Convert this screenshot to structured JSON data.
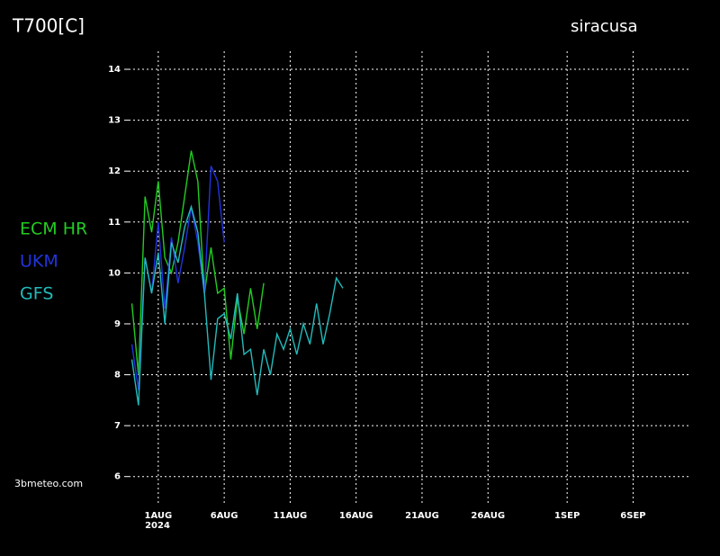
{
  "chart_data": {
    "type": "line",
    "title": "T700[C]",
    "subtitle": "siracusa",
    "credit": "3bmeteo.com",
    "year": "2024",
    "xlim": [
      -0.9,
      41.2
    ],
    "ylim": [
      5.5,
      14.4
    ],
    "yticks": [
      6,
      7,
      8,
      9,
      10,
      11,
      12,
      13,
      14
    ],
    "xticks": [
      {
        "value": 1,
        "label": "1AUG"
      },
      {
        "value": 6,
        "label": "6AUG"
      },
      {
        "value": 11,
        "label": "11AUG"
      },
      {
        "value": 16,
        "label": "16AUG"
      },
      {
        "value": 21,
        "label": "21AUG"
      },
      {
        "value": 26,
        "label": "26AUG"
      },
      {
        "value": 32,
        "label": "1SEP"
      },
      {
        "value": 37,
        "label": "6SEP"
      }
    ],
    "grid": true,
    "series": [
      {
        "name": "ECM HR",
        "color": "#22cc22",
        "x": [
          -1,
          -0.5,
          0,
          0.5,
          1,
          1.5,
          2,
          2.5,
          3,
          3.5,
          4,
          4.5,
          5,
          5.5,
          6,
          6.5,
          7,
          7.5,
          8,
          8.5,
          9
        ],
        "values": [
          9.4,
          8.0,
          11.5,
          10.8,
          11.8,
          10.3,
          10.0,
          10.6,
          11.5,
          12.4,
          11.8,
          9.6,
          10.5,
          9.6,
          9.7,
          8.3,
          9.5,
          8.8,
          9.7,
          8.9,
          9.8
        ]
      },
      {
        "name": "UKM",
        "color": "#2233dd",
        "x": [
          -1,
          -0.5,
          0,
          0.5,
          1,
          1.5,
          2,
          2.5,
          3,
          3.5,
          4,
          4.5,
          5,
          5.5,
          6
        ],
        "values": [
          8.6,
          7.7,
          10.3,
          9.6,
          11.0,
          9.3,
          10.7,
          9.8,
          10.5,
          11.3,
          10.6,
          9.6,
          12.1,
          11.8,
          10.6
        ]
      },
      {
        "name": "GFS",
        "color": "#22bbbb",
        "x": [
          -1,
          -0.5,
          0,
          0.5,
          1,
          1.5,
          2,
          2.5,
          3,
          3.5,
          4,
          4.5,
          5,
          5.5,
          6,
          6.5,
          7,
          7.5,
          8,
          8.5,
          9,
          9.5,
          10,
          10.5,
          11,
          11.5,
          12,
          12.5,
          13,
          13.5,
          14,
          14.5,
          15
        ],
        "values": [
          8.3,
          7.4,
          10.3,
          9.6,
          10.4,
          9.0,
          10.6,
          10.2,
          10.9,
          11.3,
          10.8,
          9.6,
          7.9,
          9.1,
          9.2,
          8.7,
          9.6,
          8.4,
          8.5,
          7.6,
          8.5,
          8.0,
          8.8,
          8.5,
          8.9,
          8.4,
          9.0,
          8.6,
          9.4,
          8.6,
          9.2,
          9.9,
          9.7
        ]
      }
    ]
  }
}
